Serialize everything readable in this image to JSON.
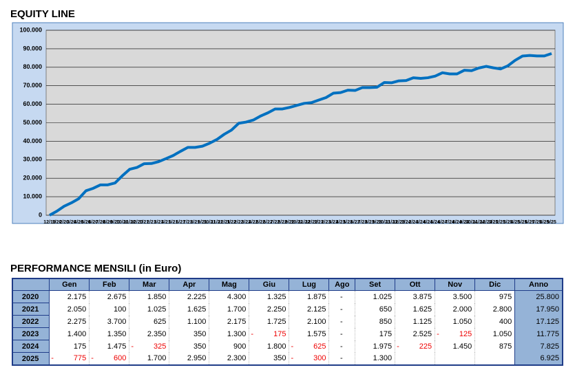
{
  "chart_data": {
    "type": "line",
    "title": "EQUITY LINE",
    "categories": [
      "12/19",
      "1/20",
      "2/20",
      "3/20",
      "4/20",
      "5/20",
      "6/20",
      "7/20",
      "8/20",
      "9/20",
      "10/20",
      "11/20",
      "12/20",
      "1/21",
      "2/21",
      "3/21",
      "4/21",
      "5/21",
      "6/21",
      "7/21",
      "8/21",
      "9/21",
      "10/21",
      "11/21",
      "12/21",
      "1/22",
      "2/22",
      "3/22",
      "4/22",
      "5/22",
      "6/22",
      "7/22",
      "8/22",
      "9/22",
      "10/22",
      "11/22",
      "12/22",
      "1/23",
      "2/23",
      "3/23",
      "4/23",
      "5/23",
      "6/23",
      "7/23",
      "8/23",
      "9/23",
      "10/23",
      "11/23",
      "12/23",
      "1/24",
      "2/24",
      "3/24",
      "4/24",
      "5/24",
      "6/24",
      "7/24",
      "8/24",
      "9/24",
      "10/24",
      "11/24",
      "12/24",
      "1/25",
      "2/25",
      "3/25",
      "4/25",
      "5/25",
      "6/25",
      "7/25",
      "8/25",
      "9/25"
    ],
    "values": [
      0,
      2175,
      4850,
      6700,
      8925,
      13225,
      14550,
      16425,
      16425,
      17450,
      21325,
      24825,
      25800,
      27850,
      27950,
      28975,
      30600,
      32300,
      34550,
      36675,
      36675,
      37325,
      38950,
      40950,
      43750,
      46025,
      49725,
      50350,
      51450,
      53625,
      55350,
      57450,
      57450,
      58300,
      59425,
      60475,
      60875,
      62275,
      63625,
      65975,
      66325,
      67625,
      67450,
      69025,
      69025,
      69200,
      71725,
      71600,
      72650,
      72825,
      74300,
      73975,
      74325,
      75225,
      77025,
      76400,
      76400,
      78375,
      78150,
      79600,
      80475,
      79700,
      79100,
      80800,
      83750,
      86050,
      86400,
      86100,
      86100,
      87400
    ],
    "color": "#0070c0",
    "ylim": [
      0,
      100000
    ],
    "yticks": [
      {
        "value": 0,
        "label": "0"
      },
      {
        "value": 10000,
        "label": "10.000"
      },
      {
        "value": 20000,
        "label": "20.000"
      },
      {
        "value": 30000,
        "label": "30.000"
      },
      {
        "value": 40000,
        "label": "40.000"
      },
      {
        "value": 50000,
        "label": "50.000"
      },
      {
        "value": 60000,
        "label": "60.000"
      },
      {
        "value": 70000,
        "label": "70.000"
      },
      {
        "value": 80000,
        "label": "80.000"
      },
      {
        "value": 90000,
        "label": "90.000"
      },
      {
        "value": 100000,
        "label": "100.000"
      }
    ],
    "grid": true
  },
  "table": {
    "title": "PERFORMANCE MENSILI (in Euro)",
    "header": [
      "Gen",
      "Feb",
      "Mar",
      "Apr",
      "Mag",
      "Giu",
      "Lug",
      "Ago",
      "Set",
      "Ott",
      "Nov",
      "Dic",
      "Anno"
    ],
    "rows": [
      [
        "2020",
        "2.175",
        "2.675",
        "1.850",
        "2.225",
        "4.300",
        "1.325",
        "1.875",
        "-",
        "1.025",
        "3.875",
        "3.500",
        "975",
        "25.800"
      ],
      [
        "2021",
        "2.050",
        "100",
        "1.025",
        "1.625",
        "1.700",
        "2.250",
        "2.125",
        "-",
        "650",
        "1.625",
        "2.000",
        "2.800",
        "17.950"
      ],
      [
        "2022",
        "2.275",
        "3.700",
        "625",
        "1.100",
        "2.175",
        "1.725",
        "2.100",
        "-",
        "850",
        "1.125",
        "1.050",
        "400",
        "17.125"
      ],
      [
        "2023",
        "1.400",
        "1.350",
        "2.350",
        "350",
        "1.300",
        {
          "sign": "-",
          "value": "175"
        },
        "1.575",
        "-",
        "175",
        "2.525",
        {
          "sign": "-",
          "value": "125"
        },
        "1.050",
        "11.775"
      ],
      [
        "2024",
        "175",
        "1.475",
        {
          "sign": "-",
          "value": "325"
        },
        "350",
        "900",
        "1.800",
        {
          "sign": "-",
          "value": "625"
        },
        "-",
        "1.975",
        {
          "sign": "-",
          "value": "225"
        },
        "1.450",
        "875",
        "7.825"
      ],
      [
        "2025",
        {
          "sign": "-",
          "value": "775"
        },
        {
          "sign": "-",
          "value": "600"
        },
        "1.700",
        "2.950",
        "2.300",
        "350",
        {
          "sign": "-",
          "value": "300"
        },
        "-",
        "1.300",
        null,
        null,
        null,
        "6.925"
      ]
    ]
  }
}
